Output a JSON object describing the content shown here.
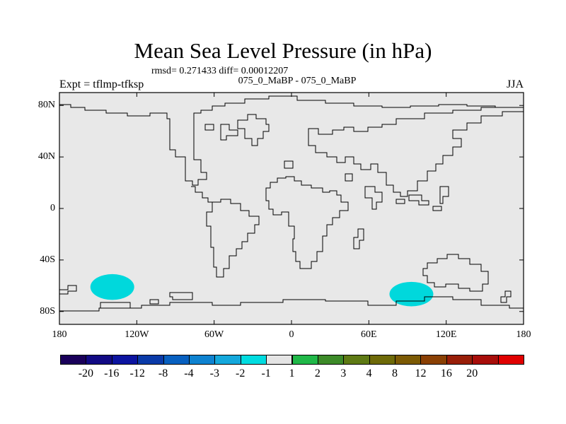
{
  "title": "Mean Sea Level Pressure (in hPa)",
  "stats": "rmsd= 0.271433 diff= 0.00012207",
  "expt": "Expt = tflmp-tfksp",
  "diff_name": "075_0_MaBP - 075_0_MaBP",
  "season": "JJA",
  "colors": {
    "ocean": "#e8e8e8",
    "anomaly": "#00d8dc",
    "coast": "#000000"
  },
  "chart_data": {
    "type": "heatmap",
    "title": "Mean Sea Level Pressure (in hPa)",
    "xlim": [
      -180,
      180
    ],
    "ylim": [
      -90,
      90
    ],
    "x_ticks": [
      {
        "value": -180,
        "label": "180"
      },
      {
        "value": -120,
        "label": "120W"
      },
      {
        "value": -60,
        "label": "60W"
      },
      {
        "value": 0,
        "label": "0"
      },
      {
        "value": 60,
        "label": "60E"
      },
      {
        "value": 120,
        "label": "120E"
      },
      {
        "value": 180,
        "label": "180"
      }
    ],
    "y_ticks": [
      {
        "value": 80,
        "label": "80N"
      },
      {
        "value": 40,
        "label": "40N"
      },
      {
        "value": 0,
        "label": "0"
      },
      {
        "value": -40,
        "label": "40S"
      },
      {
        "value": -80,
        "label": "80S"
      }
    ],
    "anomaly_regions": [
      {
        "name": "south-pacific-anomaly",
        "lon_range": [
          -156,
          -122
        ],
        "lat_range": [
          -71,
          -51
        ],
        "bin": "-2 to -1"
      },
      {
        "name": "southern-indian-anomaly",
        "lon_range": [
          76,
          110
        ],
        "lat_range": [
          -76,
          -57
        ],
        "bin": "-2 to -1"
      }
    ],
    "colorbar": {
      "colors": [
        "#1a005a",
        "#120a84",
        "#0c14a0",
        "#0a3aa8",
        "#0860c0",
        "#0e82d0",
        "#14a8dc",
        "#00dce0",
        "#e4e4e4",
        "#20b848",
        "#3c8a28",
        "#5e7a14",
        "#6e6a08",
        "#7c5a04",
        "#8a4004",
        "#981e08",
        "#a80e0a",
        "#e00000"
      ],
      "labels": [
        "-20",
        "-16",
        "-12",
        "-8",
        "-4",
        "-3",
        "-2",
        "-1",
        "1",
        "2",
        "3",
        "4",
        "8",
        "12",
        "16",
        "20"
      ]
    }
  }
}
